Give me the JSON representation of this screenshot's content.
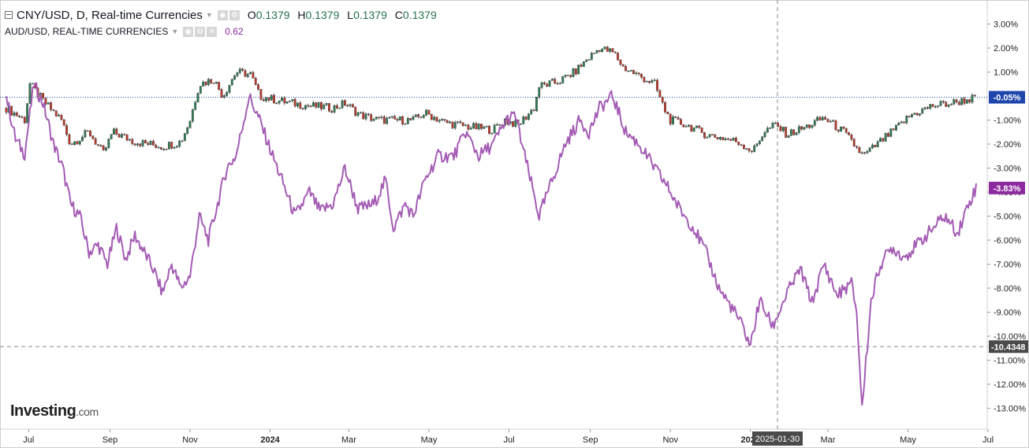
{
  "legend": {
    "main_title": "CNY/USD, D, Real-time Currencies",
    "ohlc": {
      "o_label": "O",
      "o": "0.1379",
      "h_label": "H",
      "h": "0.1379",
      "l_label": "L",
      "l": "0.1379",
      "c_label": "C",
      "c": "0.1379"
    },
    "sub_title": "AUD/USD, REAL-TIME CURRENCIES",
    "sub_value": "0.62"
  },
  "logo": {
    "name": "Investing",
    "tld": ".com"
  },
  "colors": {
    "up": "#2f7d55",
    "down": "#c0392b",
    "aud_line": "#a45cb4",
    "aud_badge": "#8e2aa0",
    "cny_badge": "#1e46ad"
  },
  "chart_data": {
    "type": "line",
    "y_unit": "percent change",
    "ylim": [
      -13.5,
      4.0
    ],
    "y_ticks": [
      "3.00%",
      "2.00%",
      "1.00%",
      "-1.00%",
      "-2.00%",
      "-3.00%",
      "-4.00%",
      "-5.00%",
      "-6.00%",
      "-7.00%",
      "-8.00%",
      "-9.00%",
      "-10.00%",
      "-11.00%",
      "-12.00%",
      "-13.00%"
    ],
    "x_labels": [
      "Jul",
      "Sep",
      "Nov",
      "2024",
      "Mar",
      "May",
      "Jul",
      "Sep",
      "Nov",
      "2025",
      "Mar",
      "May",
      "Jul"
    ],
    "x_bold_labels": [
      "2024",
      "2025"
    ],
    "crosshair": {
      "date": "2025-01-30",
      "value": "-10.4348"
    },
    "last_values": {
      "cny": "-0.05%",
      "aud": "-3.83%"
    },
    "series": [
      {
        "name": "CNY/USD",
        "style": "candles",
        "points": [
          [
            "Jun 26 2023",
            -0.5
          ],
          [
            "Jul 10 2023",
            -1.0
          ],
          [
            "Jul 14 2023",
            0.5
          ],
          [
            "Jul 24 2023",
            -0.2
          ],
          [
            "Aug 7 2023",
            -1.0
          ],
          [
            "Aug 14 2023",
            -2.0
          ],
          [
            "Aug 28 2023",
            -1.5
          ],
          [
            "Sep 8 2023",
            -2.4
          ],
          [
            "Sep 15 2023",
            -1.5
          ],
          [
            "Oct 2 2023",
            -1.9
          ],
          [
            "Oct 23 2023",
            -2.1
          ],
          [
            "Nov 6 2023",
            -1.9
          ],
          [
            "Nov 13 2023",
            -1.0
          ],
          [
            "Nov 20 2023",
            0.5
          ],
          [
            "Dec 1 2023",
            0.7
          ],
          [
            "Dec 8 2023",
            0.0
          ],
          [
            "Dec 18 2023",
            1.0
          ],
          [
            "Dec 29 2023",
            0.9
          ],
          [
            "Jan 5 2024",
            0.0
          ],
          [
            "Jan 20 2024",
            -0.2
          ],
          [
            "Feb 10 2024",
            -0.4
          ],
          [
            "Mar 1 2024",
            -0.5
          ],
          [
            "Mar 10 2024",
            -0.3
          ],
          [
            "Mar 22 2024",
            -0.8
          ],
          [
            "Apr 5 2024",
            -1.0
          ],
          [
            "May 1 2024",
            -1.0
          ],
          [
            "May 10 2024",
            -0.7
          ],
          [
            "May 25 2024",
            -1.1
          ],
          [
            "Jun 15 2024",
            -1.3
          ],
          [
            "Jul 1 2024",
            -1.4
          ],
          [
            "Jul 10 2024",
            -1.0
          ],
          [
            "Jul 20 2024",
            -1.2
          ],
          [
            "Aug 1 2024",
            -0.5
          ],
          [
            "Aug 5 2024",
            0.4
          ],
          [
            "Aug 20 2024",
            0.6
          ],
          [
            "Sep 1 2024",
            1.0
          ],
          [
            "Sep 10 2024",
            1.5
          ],
          [
            "Sep 20 2024",
            2.0
          ],
          [
            "Oct 1 2024",
            1.8
          ],
          [
            "Oct 8 2024",
            1.2
          ],
          [
            "Oct 25 2024",
            0.7
          ],
          [
            "Nov 1 2024",
            0.5
          ],
          [
            "Nov 8 2024",
            -0.5
          ],
          [
            "Nov 13 2024",
            -1.0
          ],
          [
            "Nov 25 2024",
            -1.2
          ],
          [
            "Dec 10 2024",
            -1.6
          ],
          [
            "Dec 27 2024",
            -1.8
          ],
          [
            "Jan 3 2025",
            -1.9
          ],
          [
            "Jan 15 2025",
            -2.3
          ],
          [
            "Jan 23 2025",
            -1.5
          ],
          [
            "Feb 1 2025",
            -1.2
          ],
          [
            "Feb 10 2025",
            -1.6
          ],
          [
            "Feb 24 2025",
            -1.3
          ],
          [
            "Mar 10 2025",
            -0.9
          ],
          [
            "Mar 25 2025",
            -1.5
          ],
          [
            "Apr 9 2025",
            -2.5
          ],
          [
            "Apr 22 2025",
            -1.9
          ],
          [
            "May 5 2025",
            -1.3
          ],
          [
            "May 15 2025",
            -0.8
          ],
          [
            "Jun 1 2025",
            -0.4
          ],
          [
            "Jun 15 2025",
            -0.3
          ],
          [
            "Jul 1 2025",
            -0.1
          ],
          [
            "Jul 4 2025",
            -0.05
          ]
        ]
      },
      {
        "name": "AUD/USD",
        "style": "line",
        "points": [
          [
            "Jun 26 2023",
            0.0
          ],
          [
            "Jul 3 2023",
            -1.8
          ],
          [
            "Jul 10 2023",
            -2.4
          ],
          [
            "Jul 17 2023",
            0.5
          ],
          [
            "Jul 24 2023",
            -0.3
          ],
          [
            "Aug 1 2023",
            -2.0
          ],
          [
            "Aug 8 2023",
            -3.0
          ],
          [
            "Aug 14 2023",
            -4.5
          ],
          [
            "Aug 21 2023",
            -5.0
          ],
          [
            "Aug 28 2023",
            -6.5
          ],
          [
            "Sep 4 2023",
            -6.2
          ],
          [
            "Sep 11 2023",
            -7.0
          ],
          [
            "Sep 18 2023",
            -5.5
          ],
          [
            "Sep 25 2023",
            -6.8
          ],
          [
            "Oct 2 2023",
            -5.8
          ],
          [
            "Oct 9 2023",
            -6.5
          ],
          [
            "Oct 16 2023",
            -7.2
          ],
          [
            "Oct 23 2023",
            -8.2
          ],
          [
            "Oct 30 2023",
            -7.0
          ],
          [
            "Nov 6 2023",
            -8.0
          ],
          [
            "Nov 13 2023",
            -7.5
          ],
          [
            "Nov 20 2023",
            -5.0
          ],
          [
            "Nov 27 2023",
            -6.0
          ],
          [
            "Dec 4 2023",
            -4.5
          ],
          [
            "Dec 11 2023",
            -3.0
          ],
          [
            "Dec 18 2023",
            -2.5
          ],
          [
            "Dec 28 2023",
            0.0
          ],
          [
            "Jan 5 2024",
            -1.0
          ],
          [
            "Jan 15 2024",
            -2.5
          ],
          [
            "Jan 22 2024",
            -3.5
          ],
          [
            "Feb 1 2024",
            -5.0
          ],
          [
            "Feb 12 2024",
            -4.0
          ],
          [
            "Feb 20 2024",
            -4.8
          ],
          [
            "Mar 1 2024",
            -4.5
          ],
          [
            "Mar 10 2024",
            -3.0
          ],
          [
            "Mar 20 2024",
            -4.7
          ],
          [
            "Apr 1 2024",
            -4.5
          ],
          [
            "Apr 10 2024",
            -3.5
          ],
          [
            "Apr 16 2024",
            -5.5
          ],
          [
            "Apr 25 2024",
            -4.5
          ],
          [
            "May 1 2024",
            -5.0
          ],
          [
            "May 10 2024",
            -3.5
          ],
          [
            "May 20 2024",
            -2.5
          ],
          [
            "Jun 1 2024",
            -2.5
          ],
          [
            "Jun 10 2024",
            -1.5
          ],
          [
            "Jun 20 2024",
            -2.5
          ],
          [
            "Jul 1 2024",
            -2.0
          ],
          [
            "Jul 11 2024",
            -1.0
          ],
          [
            "Jul 18 2024",
            -0.8
          ],
          [
            "Jul 25 2024",
            -2.5
          ],
          [
            "Aug 5 2024",
            -5.0
          ],
          [
            "Aug 15 2024",
            -3.5
          ],
          [
            "Aug 25 2024",
            -2.0
          ],
          [
            "Sep 5 2024",
            -1.0
          ],
          [
            "Sep 12 2024",
            -1.5
          ],
          [
            "Sep 20 2024",
            -0.5
          ],
          [
            "Sep 30 2024",
            0.0
          ],
          [
            "Oct 10 2024",
            -1.5
          ],
          [
            "Oct 20 2024",
            -2.0
          ],
          [
            "Nov 1 2024",
            -3.0
          ],
          [
            "Nov 10 2024",
            -3.7
          ],
          [
            "Nov 20 2024",
            -4.7
          ],
          [
            "Dec 1 2024",
            -5.5
          ],
          [
            "Dec 10 2024",
            -6.5
          ],
          [
            "Dec 20 2024",
            -8.0
          ],
          [
            "Jan 1 2025",
            -9.0
          ],
          [
            "Jan 7 2025",
            -9.6
          ],
          [
            "Jan 13 2025",
            -10.4
          ],
          [
            "Jan 20 2025",
            -8.5
          ],
          [
            "Jan 30 2025",
            -9.6
          ],
          [
            "Feb 10 2025",
            -8.2
          ],
          [
            "Feb 20 2025",
            -7.2
          ],
          [
            "Mar 1 2025",
            -8.6
          ],
          [
            "Mar 10 2025",
            -7.0
          ],
          [
            "Mar 20 2025",
            -8.3
          ],
          [
            "Mar 31 2025",
            -7.8
          ],
          [
            "Apr 4 2025",
            -9.0
          ],
          [
            "Apr 8 2025",
            -13.0
          ],
          [
            "Apr 15 2025",
            -8.5
          ],
          [
            "Apr 22 2025",
            -7.0
          ],
          [
            "May 1 2025",
            -6.3
          ],
          [
            "May 10 2025",
            -6.7
          ],
          [
            "May 20 2025",
            -6.2
          ],
          [
            "Jun 1 2025",
            -5.5
          ],
          [
            "Jun 10 2025",
            -5.0
          ],
          [
            "Jun 20 2025",
            -5.7
          ],
          [
            "Jun 28 2025",
            -4.5
          ],
          [
            "Jul 4 2025",
            -3.83
          ]
        ]
      }
    ]
  }
}
